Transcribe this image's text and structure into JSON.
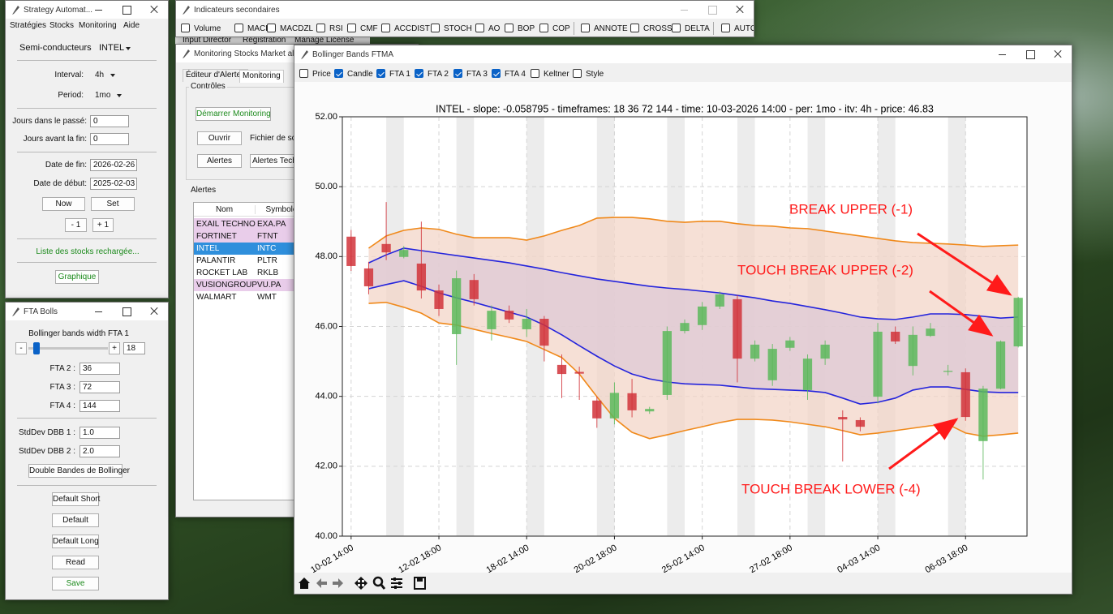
{
  "strategy_window": {
    "title": "Strategy Automat...",
    "menu": [
      "Stratégies",
      "Stocks",
      "Monitoring",
      "Aide"
    ],
    "sector": "Semi-conducteurs",
    "stock": "INTEL",
    "interval_label": "Interval:",
    "interval": "4h",
    "period_label": "Period:",
    "period": "1mo",
    "days_past_label": "Jours dans le passé:",
    "days_past": "0",
    "days_before_end_label": "Jours avant la fin:",
    "days_before_end": "0",
    "end_date_label": "Date de fin:",
    "end_date": "2026-02-26",
    "start_date_label": "Date de début:",
    "start_date": "2025-02-03",
    "buttons": [
      "Now",
      "Set",
      "- 1",
      "+ 1"
    ],
    "status": "Liste des stocks rechargée...",
    "graph_button": "Graphique"
  },
  "indicators_window": {
    "title": "Indicateurs secondaires",
    "checkboxes": [
      "Volume",
      "MACD",
      "MACDZL",
      "RSI",
      "CMF",
      "ACCDIST",
      "STOCH",
      "AO",
      "BOP",
      "COP",
      "ANNOTE",
      "CROSS",
      "DELTA",
      "AUTO"
    ],
    "menu_behind": [
      "Input Director",
      "Registration",
      "Manage License"
    ]
  },
  "monitoring_window": {
    "title": "Monitoring Stocks Market alerts",
    "tabs": [
      "Éditeur d'Alertes",
      "Monitoring"
    ],
    "controls_label": "Contrôles",
    "start_button": "Démarrer Monitoring",
    "open_button": "Ouvrir",
    "file_label": "Fichier de scre",
    "alerts_button": "Alertes",
    "tech_button": "Alertes Techn",
    "alerts_label": "Alertes",
    "table": {
      "header": [
        "Nom",
        "Symbole"
      ],
      "rows": [
        [
          "EXAIL TECHNO",
          "EXA.PA"
        ],
        [
          "FORTINET",
          "FTNT"
        ],
        [
          "INTEL",
          "INTC"
        ],
        [
          "PALANTIR",
          "PLTR"
        ],
        [
          "ROCKET LAB",
          "RKLB"
        ],
        [
          "VUSIONGROUP",
          "VU.PA"
        ],
        [
          "WALMART",
          "WMT"
        ]
      ],
      "highlighted_rows": [
        0,
        1,
        5
      ],
      "selected_row": 2
    }
  },
  "fta_window": {
    "title": "FTA Bolls",
    "slider_label": "Bollinger bands width FTA 1",
    "slider_minus": "-",
    "slider_plus": "+",
    "fta1": "18",
    "fields": [
      {
        "label": "FTA 2 :",
        "value": "36"
      },
      {
        "label": "FTA 3 :",
        "value": "72"
      },
      {
        "label": "FTA 4 :",
        "value": "144"
      },
      {
        "label": "StdDev DBB 1 :",
        "value": "1.0"
      },
      {
        "label": "StdDev DBB 2 :",
        "value": "2.0"
      }
    ],
    "buttons": [
      "Double Bandes de Bollinger",
      "Default Short",
      "Default",
      "Default Long",
      "Read",
      "Save"
    ]
  },
  "bollinger_window": {
    "title": "Bollinger Bands FTMA",
    "options": [
      {
        "label": "Price",
        "checked": false
      },
      {
        "label": "Candle",
        "checked": true
      },
      {
        "label": "FTA 1",
        "checked": true
      },
      {
        "label": "FTA 2",
        "checked": true
      },
      {
        "label": "FTA 3",
        "checked": true
      },
      {
        "label": "FTA 4",
        "checked": true
      },
      {
        "label": "Keltner",
        "checked": false
      },
      {
        "label": "Style",
        "checked": false
      }
    ]
  },
  "chart_data": {
    "type": "candlestick",
    "title": "INTEL - slope: -0.058795 - timeframes: 18 36 72 144 - time: 10-03-2026 14:00 - per: 1mo - itv: 4h - price: 46.83",
    "categories": [
      "10-02 14:00",
      null,
      null,
      null,
      null,
      "12-02 18:00",
      null,
      null,
      null,
      null,
      "18-02 14:00",
      null,
      null,
      null,
      null,
      "20-02 18:00",
      null,
      null,
      null,
      null,
      "25-02 14:00",
      null,
      null,
      null,
      null,
      "27-02 18:00",
      null,
      null,
      null,
      null,
      "04-03 14:00",
      null,
      null,
      null,
      null,
      "06-03 18:00",
      null,
      null,
      null
    ],
    "open": [
      48.57,
      47.66,
      48.36,
      47.99,
      47.8,
      47.03,
      45.78,
      47.33,
      45.92,
      46.45,
      45.92,
      46.22,
      44.9,
      44.7,
      43.88,
      43.37,
      44.09,
      43.57,
      44.04,
      45.87,
      46.04,
      46.57,
      46.78,
      45.08,
      44.46,
      45.39,
      44.18,
      45.08,
      43.41,
      43.32,
      43.99,
      45.85,
      44.87,
      45.73,
      44.7,
      44.69,
      42.72,
      44.22,
      45.43
    ],
    "high": [
      48.76,
      47.85,
      49.56,
      48.3,
      49.0,
      47.2,
      47.6,
      47.5,
      46.6,
      46.6,
      46.5,
      46.3,
      45.2,
      44.85,
      44.0,
      44.4,
      44.5,
      43.7,
      46.0,
      46.2,
      46.7,
      47.0,
      46.9,
      45.6,
      45.5,
      45.7,
      45.2,
      45.6,
      43.6,
      43.4,
      46.1,
      46.0,
      46.0,
      46.1,
      44.9,
      44.8,
      44.3,
      45.6,
      46.85
    ],
    "low": [
      47.59,
      46.92,
      47.9,
      47.95,
      46.8,
      46.3,
      44.9,
      46.6,
      45.6,
      46.1,
      45.7,
      45.0,
      43.95,
      43.9,
      43.1,
      43.2,
      43.4,
      43.5,
      43.9,
      45.8,
      45.9,
      46.5,
      44.4,
      45.0,
      44.3,
      45.3,
      43.9,
      44.9,
      42.14,
      43.0,
      43.8,
      45.5,
      44.6,
      45.7,
      44.6,
      43.3,
      41.62,
      44.2,
      45.4
    ],
    "close": [
      47.73,
      47.15,
      48.12,
      48.19,
      47.03,
      46.5,
      47.38,
      46.78,
      46.45,
      46.2,
      46.22,
      45.45,
      44.64,
      44.65,
      43.37,
      44.1,
      43.6,
      43.64,
      45.87,
      46.1,
      46.57,
      46.92,
      45.08,
      45.48,
      45.36,
      45.6,
      45.08,
      45.48,
      43.34,
      43.13,
      45.85,
      45.57,
      45.76,
      45.94,
      44.73,
      43.41,
      44.22,
      45.57,
      46.82
    ],
    "up_color": "#5cb85c",
    "down_color": "#d1323a",
    "series": [
      {
        "color": "#f0891a",
        "fill": "#f3d6c8",
        "values": [
          null,
          48.24,
          48.59,
          48.75,
          48.82,
          48.78,
          48.64,
          48.54,
          48.54,
          48.54,
          48.47,
          48.59,
          48.75,
          48.89,
          49.1,
          49.12,
          49.12,
          49.08,
          49.01,
          48.98,
          49.01,
          49.01,
          48.94,
          48.89,
          48.87,
          48.82,
          48.8,
          48.73,
          48.66,
          48.59,
          48.52,
          48.45,
          48.4,
          48.38,
          48.36,
          48.33,
          48.29,
          48.31,
          48.33
        ]
      },
      {
        "color": "#f0891a",
        "values": [
          null,
          46.66,
          46.69,
          46.55,
          46.38,
          46.1,
          46.04,
          45.92,
          45.8,
          45.69,
          45.57,
          45.34,
          45.11,
          44.64,
          43.99,
          43.37,
          42.97,
          42.79,
          42.9,
          43.02,
          43.13,
          43.25,
          43.34,
          43.34,
          43.32,
          43.27,
          43.2,
          43.13,
          43.02,
          42.9,
          42.95,
          43.02,
          43.09,
          43.16,
          43.2,
          42.95,
          42.86,
          42.9,
          42.95
        ]
      },
      {
        "color": "#2424dc",
        "fill": "#ddc9d6",
        "values": [
          null,
          47.82,
          48.05,
          48.24,
          48.17,
          48.1,
          48.03,
          47.96,
          47.89,
          47.82,
          47.73,
          47.64,
          47.54,
          47.45,
          47.36,
          47.29,
          47.22,
          47.15,
          47.1,
          47.06,
          47.01,
          46.96,
          46.89,
          46.82,
          46.73,
          46.66,
          46.57,
          46.48,
          46.38,
          46.27,
          46.22,
          46.2,
          46.27,
          46.36,
          46.36,
          46.34,
          46.29,
          46.24,
          46.27
        ]
      },
      {
        "color": "#2424dc",
        "values": [
          null,
          47.08,
          47.2,
          47.31,
          47.15,
          46.96,
          46.82,
          46.69,
          46.55,
          46.41,
          46.27,
          46.04,
          45.76,
          45.45,
          45.15,
          44.87,
          44.64,
          44.5,
          44.41,
          44.36,
          44.34,
          44.32,
          44.27,
          44.22,
          44.2,
          44.18,
          44.16,
          44.11,
          43.95,
          43.78,
          43.83,
          43.95,
          44.18,
          44.27,
          44.27,
          44.2,
          44.13,
          44.11,
          44.11
        ]
      }
    ],
    "ylim": [
      40,
      52
    ],
    "yticks": [
      {
        "value": 40,
        "label": "40.00"
      },
      {
        "value": 42,
        "label": "42.00"
      },
      {
        "value": 44,
        "label": "44.00"
      },
      {
        "value": 46,
        "label": "46.00"
      },
      {
        "value": 48,
        "label": "48.00"
      },
      {
        "value": 50,
        "label": "50.00"
      },
      {
        "value": 52,
        "label": "52.00"
      }
    ],
    "grid": true,
    "annotations": [
      "BREAK UPPER (-1)",
      "TOUCH BREAK UPPER (-2)",
      "TOUCH BREAK LOWER (-4)"
    ],
    "annotation_color": "#ff1a1a"
  }
}
